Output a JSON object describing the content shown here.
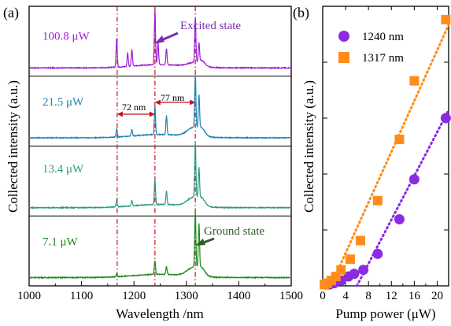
{
  "chart_data": [
    {
      "type": "line",
      "panel_label": "(a)",
      "xlabel": "Wavelength /nm",
      "ylabel": "Collected intensity (a.u.)",
      "xlim": [
        1000,
        1500
      ],
      "x_ticks": [
        "1000",
        "1100",
        "1200",
        "1300",
        "1400",
        "1500"
      ],
      "stacked_offset": true,
      "series": [
        {
          "name": "100.8 μW",
          "color": "#9b1fd6",
          "peaks": [
            {
              "x": 1167,
              "h": 0.52
            },
            {
              "x": 1188,
              "h": 0.25
            },
            {
              "x": 1196,
              "h": 0.3
            },
            {
              "x": 1240,
              "h": 1.0
            },
            {
              "x": 1246,
              "h": 0.4
            },
            {
              "x": 1262,
              "h": 0.3
            },
            {
              "x": 1317,
              "h": 0.82
            },
            {
              "x": 1324,
              "h": 0.35
            }
          ]
        },
        {
          "name": "21.5 μW",
          "color": "#1f82b5",
          "peaks": [
            {
              "x": 1167,
              "h": 0.15
            },
            {
              "x": 1196,
              "h": 0.12
            },
            {
              "x": 1240,
              "h": 0.52
            },
            {
              "x": 1262,
              "h": 0.35
            },
            {
              "x": 1317,
              "h": 0.95
            },
            {
              "x": 1324,
              "h": 0.6
            }
          ]
        },
        {
          "name": "13.4 μW",
          "color": "#2a9a82",
          "peaks": [
            {
              "x": 1167,
              "h": 0.12
            },
            {
              "x": 1196,
              "h": 0.1
            },
            {
              "x": 1240,
              "h": 0.45
            },
            {
              "x": 1262,
              "h": 0.25
            },
            {
              "x": 1317,
              "h": 1.0
            },
            {
              "x": 1324,
              "h": 0.55
            }
          ]
        },
        {
          "name": "7.1 μW",
          "color": "#1e8a1e",
          "peaks": [
            {
              "x": 1167,
              "h": 0.05
            },
            {
              "x": 1240,
              "h": 0.25
            },
            {
              "x": 1262,
              "h": 0.15
            },
            {
              "x": 1317,
              "h": 1.0
            },
            {
              "x": 1324,
              "h": 0.8
            }
          ]
        }
      ],
      "reference_lines_x": [
        1168,
        1240,
        1317
      ],
      "annotations": {
        "excited_state": "Excited state",
        "ground_state": "Ground state",
        "gap1": "72 nm",
        "gap2": "77 nm"
      },
      "annotation_colors": {
        "excited_state": "#7a2fa8",
        "ground_state": "#2e5e2a",
        "gap": "#c0141c"
      }
    },
    {
      "type": "scatter",
      "panel_label": "(b)",
      "xlabel": "Pump power (μW)",
      "ylabel": "Collected intensity (a.u.)",
      "xlim": [
        0,
        22
      ],
      "ylim": [
        0,
        1.05
      ],
      "x_ticks": [
        "0",
        "4",
        "8",
        "12",
        "16",
        "20"
      ],
      "legend_position": "top-right",
      "series": [
        {
          "name": "1240 nm",
          "color": "#8a2be2",
          "marker": "circle",
          "x": [
            0.5,
            1.2,
            2.0,
            3.2,
            4.5,
            5.5,
            7.1,
            9.6,
            13.4,
            16.0,
            21.5
          ],
          "y": [
            0.005,
            0.005,
            0.01,
            0.02,
            0.035,
            0.045,
            0.06,
            0.12,
            0.25,
            0.4,
            0.63
          ],
          "fit_x": [
            5.0,
            22.0
          ],
          "fit_y": [
            -0.04,
            0.66
          ]
        },
        {
          "name": "1317 nm",
          "color": "#ff8c1a",
          "marker": "square",
          "x": [
            0.3,
            0.8,
            1.5,
            2.3,
            3.2,
            4.8,
            6.6,
            9.6,
            13.4,
            16.0,
            21.5
          ],
          "y": [
            0.005,
            0.01,
            0.02,
            0.035,
            0.06,
            0.1,
            0.17,
            0.32,
            0.55,
            0.77,
            1.0
          ],
          "fit_x": [
            1.0,
            22.0
          ],
          "fit_y": [
            -0.02,
            0.98
          ]
        }
      ]
    }
  ]
}
